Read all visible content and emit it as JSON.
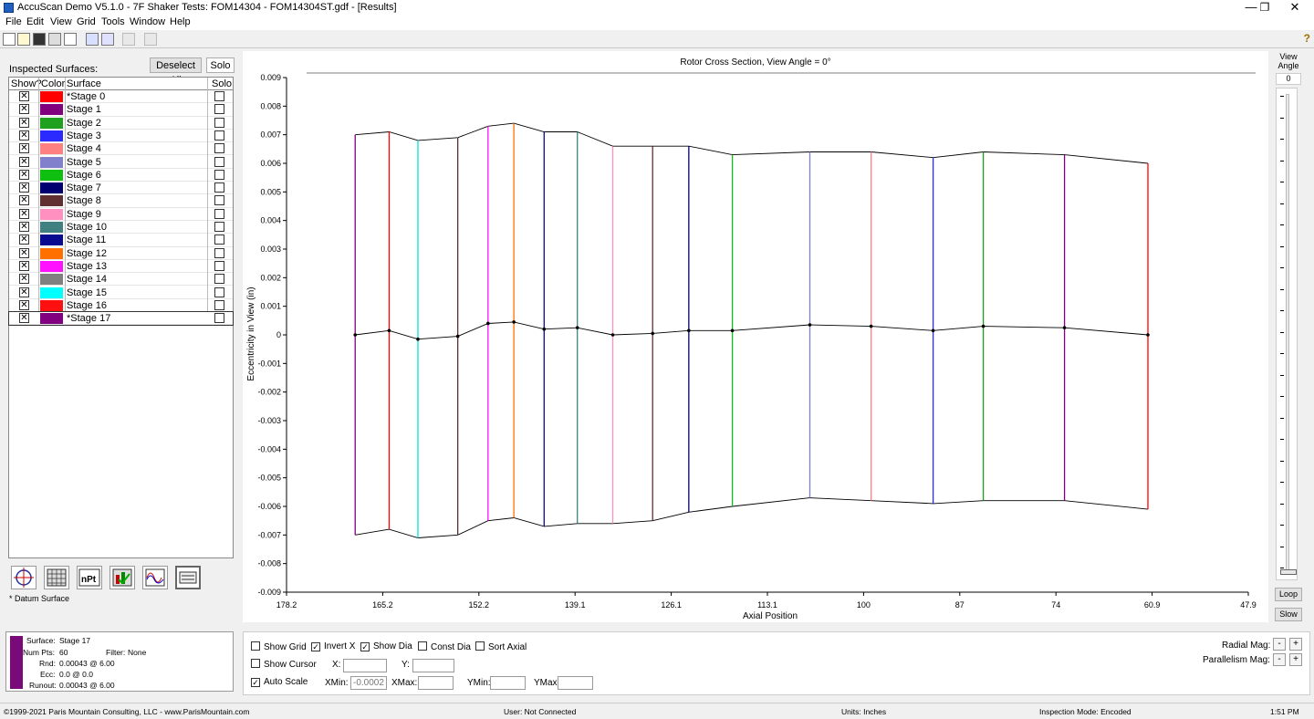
{
  "window": {
    "title": "AccuScan Demo V5.1.0 - 7F Shaker Tests: FOM14304 - FOM14304ST.gdf - [Results]",
    "minimize": "—",
    "restore": "❐",
    "close": "✕"
  },
  "menu": [
    "File",
    "Edit",
    "View",
    "Grid",
    "Tools",
    "Window",
    "Help"
  ],
  "help_glyph": "?",
  "left": {
    "inspected_label": "Inspected Surfaces:",
    "deselect_all": "Deselect All",
    "solo_btn": "Solo",
    "headers": {
      "show": "Show?",
      "color": "Color",
      "surface": "Surface",
      "solo": "Solo"
    },
    "surfaces": [
      {
        "name": "*Stage 0",
        "color": "#ff0000",
        "show": true
      },
      {
        "name": "Stage 1",
        "color": "#800080",
        "show": true
      },
      {
        "name": "Stage 2",
        "color": "#1fa01f",
        "show": true
      },
      {
        "name": "Stage 3",
        "color": "#2a2aff",
        "show": true
      },
      {
        "name": "Stage 4",
        "color": "#ff8080",
        "show": true
      },
      {
        "name": "Stage 5",
        "color": "#8080cc",
        "show": true
      },
      {
        "name": "Stage 6",
        "color": "#10c010",
        "show": true
      },
      {
        "name": "Stage 7",
        "color": "#000070",
        "show": true
      },
      {
        "name": "Stage 8",
        "color": "#603030",
        "show": true
      },
      {
        "name": "Stage 9",
        "color": "#ff90c0",
        "show": true
      },
      {
        "name": "Stage 10",
        "color": "#408080",
        "show": true
      },
      {
        "name": "Stage 11",
        "color": "#0a0a90",
        "show": true
      },
      {
        "name": "Stage 12",
        "color": "#ff7000",
        "show": true
      },
      {
        "name": "Stage 13",
        "color": "#ff10ff",
        "show": true
      },
      {
        "name": "Stage 14",
        "color": "#808080",
        "show": true
      },
      {
        "name": "Stage 15",
        "color": "#00ffff",
        "show": true
      },
      {
        "name": "Stage 16",
        "color": "#ff1010",
        "show": true
      },
      {
        "name": "*Stage 17",
        "color": "#800080",
        "show": true
      }
    ],
    "check_mark": "✕",
    "datum_note": "* Datum Surface",
    "icon_names": [
      "crosshair-icon",
      "grid-icon",
      "npt-icon",
      "chart-check-icon",
      "wave-icon",
      "probe-icon"
    ],
    "npt_label": "nPt"
  },
  "chart": {
    "title": "Rotor Cross Section, View Angle = 0°",
    "xlabel": "Axial Position",
    "ylabel": "Eccentricity in View (in)"
  },
  "chart_data": {
    "type": "line",
    "title": "Rotor Cross Section, View Angle = 0°",
    "xlabel": "Axial Position",
    "ylabel": "Eccentricity in View (in)",
    "x_inverted": true,
    "xlim": [
      178.2,
      47.9
    ],
    "ylim": [
      -0.009,
      0.009
    ],
    "x_ticks": [
      "178.2",
      "165.2",
      "152.2",
      "139.1",
      "126.1",
      "113.1",
      "100",
      "87",
      "74",
      "60.9",
      "47.9"
    ],
    "y_ticks": [
      "0.009",
      "0.008",
      "0.007",
      "0.006",
      "0.005",
      "0.004",
      "0.003",
      "0.002",
      "0.001",
      "0",
      "-0.001",
      "-0.002",
      "-0.003",
      "-0.004",
      "-0.005",
      "-0.006",
      "-0.007",
      "-0.008",
      "-0.009"
    ],
    "stations": [
      {
        "x": 168.9,
        "top": 0.007,
        "bottom": -0.007,
        "center": 0.0,
        "color": "#800080"
      },
      {
        "x": 164.3,
        "top": 0.0071,
        "bottom": -0.0068,
        "center": 0.00015,
        "color": "#ff0000"
      },
      {
        "x": 160.4,
        "top": 0.0068,
        "bottom": -0.0071,
        "center": -0.00015,
        "color": "#00e0e0"
      },
      {
        "x": 155.0,
        "top": 0.0069,
        "bottom": -0.007,
        "center": -5e-05,
        "color": "#603030"
      },
      {
        "x": 150.9,
        "top": 0.0073,
        "bottom": -0.0065,
        "center": 0.0004,
        "color": "#ff10ff"
      },
      {
        "x": 147.4,
        "top": 0.0074,
        "bottom": -0.0064,
        "center": 0.00045,
        "color": "#ff7000"
      },
      {
        "x": 143.3,
        "top": 0.0071,
        "bottom": -0.0067,
        "center": 0.0002,
        "color": "#0a0a90"
      },
      {
        "x": 138.8,
        "top": 0.0071,
        "bottom": -0.0066,
        "center": 0.00025,
        "color": "#408080"
      },
      {
        "x": 134.0,
        "top": 0.0066,
        "bottom": -0.0066,
        "center": 0.0,
        "color": "#ff90c0"
      },
      {
        "x": 128.6,
        "top": 0.0066,
        "bottom": -0.0065,
        "center": 5e-05,
        "color": "#603030"
      },
      {
        "x": 123.7,
        "top": 0.0066,
        "bottom": -0.0062,
        "center": 0.00015,
        "color": "#000070"
      },
      {
        "x": 117.8,
        "top": 0.0063,
        "bottom": -0.006,
        "center": 0.00015,
        "color": "#10c010"
      },
      {
        "x": 107.3,
        "top": 0.0064,
        "bottom": -0.0057,
        "center": 0.00035,
        "color": "#8080cc"
      },
      {
        "x": 99.0,
        "top": 0.0064,
        "bottom": -0.0058,
        "center": 0.0003,
        "color": "#ff8080"
      },
      {
        "x": 90.6,
        "top": 0.0062,
        "bottom": -0.0059,
        "center": 0.00015,
        "color": "#2a2aff"
      },
      {
        "x": 83.8,
        "top": 0.0064,
        "bottom": -0.0058,
        "center": 0.0003,
        "color": "#1fa01f"
      },
      {
        "x": 72.8,
        "top": 0.0063,
        "bottom": -0.0058,
        "center": 0.00025,
        "color": "#800080"
      },
      {
        "x": 61.5,
        "top": 0.006,
        "bottom": -0.0061,
        "center": 0.0,
        "color": "#ff0000"
      }
    ]
  },
  "right": {
    "view_label_1": "View",
    "view_label_2": "Angle",
    "view_angle": "0",
    "loop": "Loop",
    "slow": "Slow"
  },
  "info": {
    "swatch_color": "#7a0a7a",
    "surface_label": "Surface:",
    "surface_value": "Stage 17",
    "numpts_label": "Num Pts:",
    "numpts_value": "60",
    "filter_label": "Filter:",
    "filter_value": "None",
    "rnd_label": "Rnd:",
    "rnd_value": "0.00043 @ 6.00",
    "ecc_label": "Ecc:",
    "ecc_value": "0.0 @ 0.0",
    "runout_label": "Runout:",
    "runout_value": "0.00043 @ 6.00"
  },
  "controls": {
    "show_grid": "Show Grid",
    "invert_x": "Invert X",
    "show_dia": "Show Dia",
    "const_dia": "Const Dia",
    "sort_axial": "Sort Axial",
    "show_cursor": "Show Cursor",
    "auto_scale": "Auto Scale",
    "x_label": "X:",
    "y_label": "Y:",
    "xmin_label": "XMin:",
    "xmin_value": "-0.0002",
    "xmax_label": "XMax:",
    "ymin_label": "YMin:",
    "ymax_label": "YMax:",
    "radial_mag": "Radial Mag:",
    "parallelism_mag": "Parallelism Mag:",
    "minus": "-",
    "plus": "+",
    "check": "✓"
  },
  "status": {
    "copyright": "©1999-2021 Paris Mountain Consulting, LLC - www.ParisMountain.com",
    "user": "User: Not Connected",
    "units": "Units: Inches",
    "mode": "Inspection Mode: Encoded",
    "time": "1:51 PM"
  }
}
